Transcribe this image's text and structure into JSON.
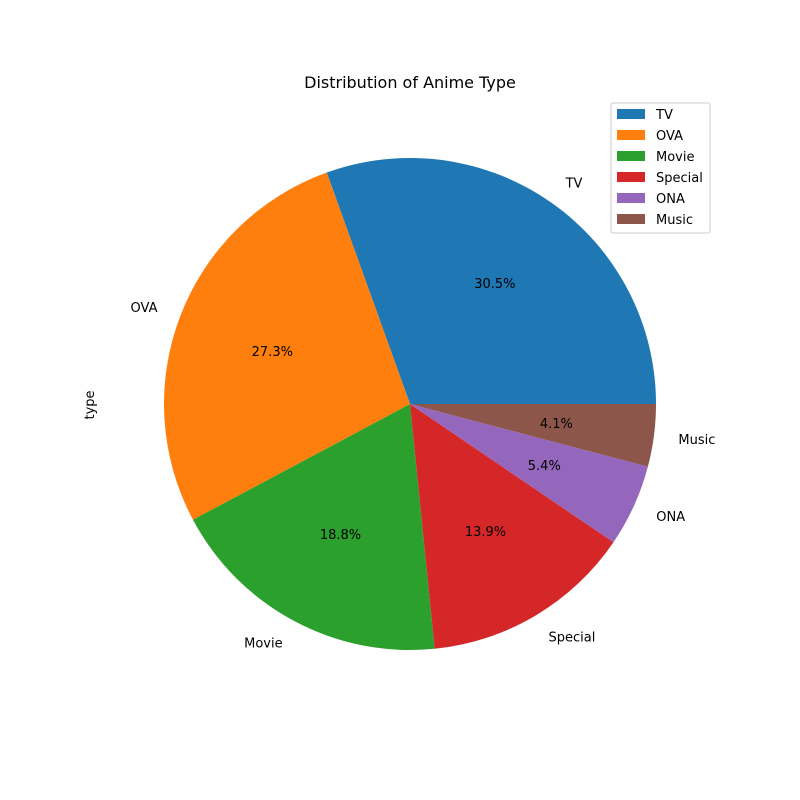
{
  "chart_data": {
    "type": "pie",
    "title": "Distribution of Anime Type",
    "ylabel": "type",
    "categories": [
      "TV",
      "OVA",
      "Movie",
      "Special",
      "ONA",
      "Music"
    ],
    "values": [
      30.5,
      27.3,
      18.8,
      13.9,
      5.4,
      4.1
    ],
    "value_labels": [
      "30.5%",
      "27.3%",
      "18.8%",
      "13.9%",
      "5.4%",
      "4.1%"
    ],
    "colors": [
      "#1f77b4",
      "#ff7f0e",
      "#2ca02c",
      "#d62728",
      "#9467bd",
      "#8c564b"
    ],
    "legend": {
      "placement": "top-right",
      "entries": [
        "TV",
        "OVA",
        "Movie",
        "Special",
        "ONA",
        "Music"
      ]
    }
  }
}
